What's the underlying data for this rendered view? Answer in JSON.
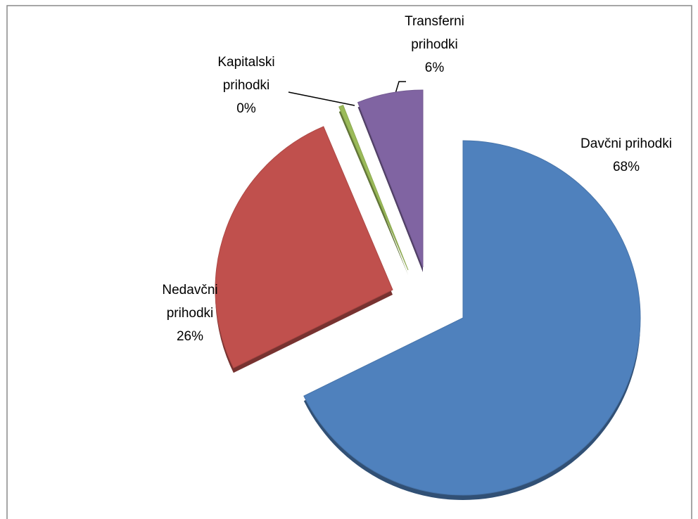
{
  "chart_data": {
    "type": "pie",
    "categories": [
      "Davčni prihodki",
      "Nedavčni prihodki",
      "Kapitalski prihodki",
      "Transferni prihodki"
    ],
    "values": [
      68,
      26,
      0.4,
      6
    ],
    "value_labels": [
      "68%",
      "26%",
      "0%",
      "6%"
    ],
    "colors": [
      "#4f81bd",
      "#c0504d",
      "#9bbb59",
      "#8064a2"
    ]
  }
}
